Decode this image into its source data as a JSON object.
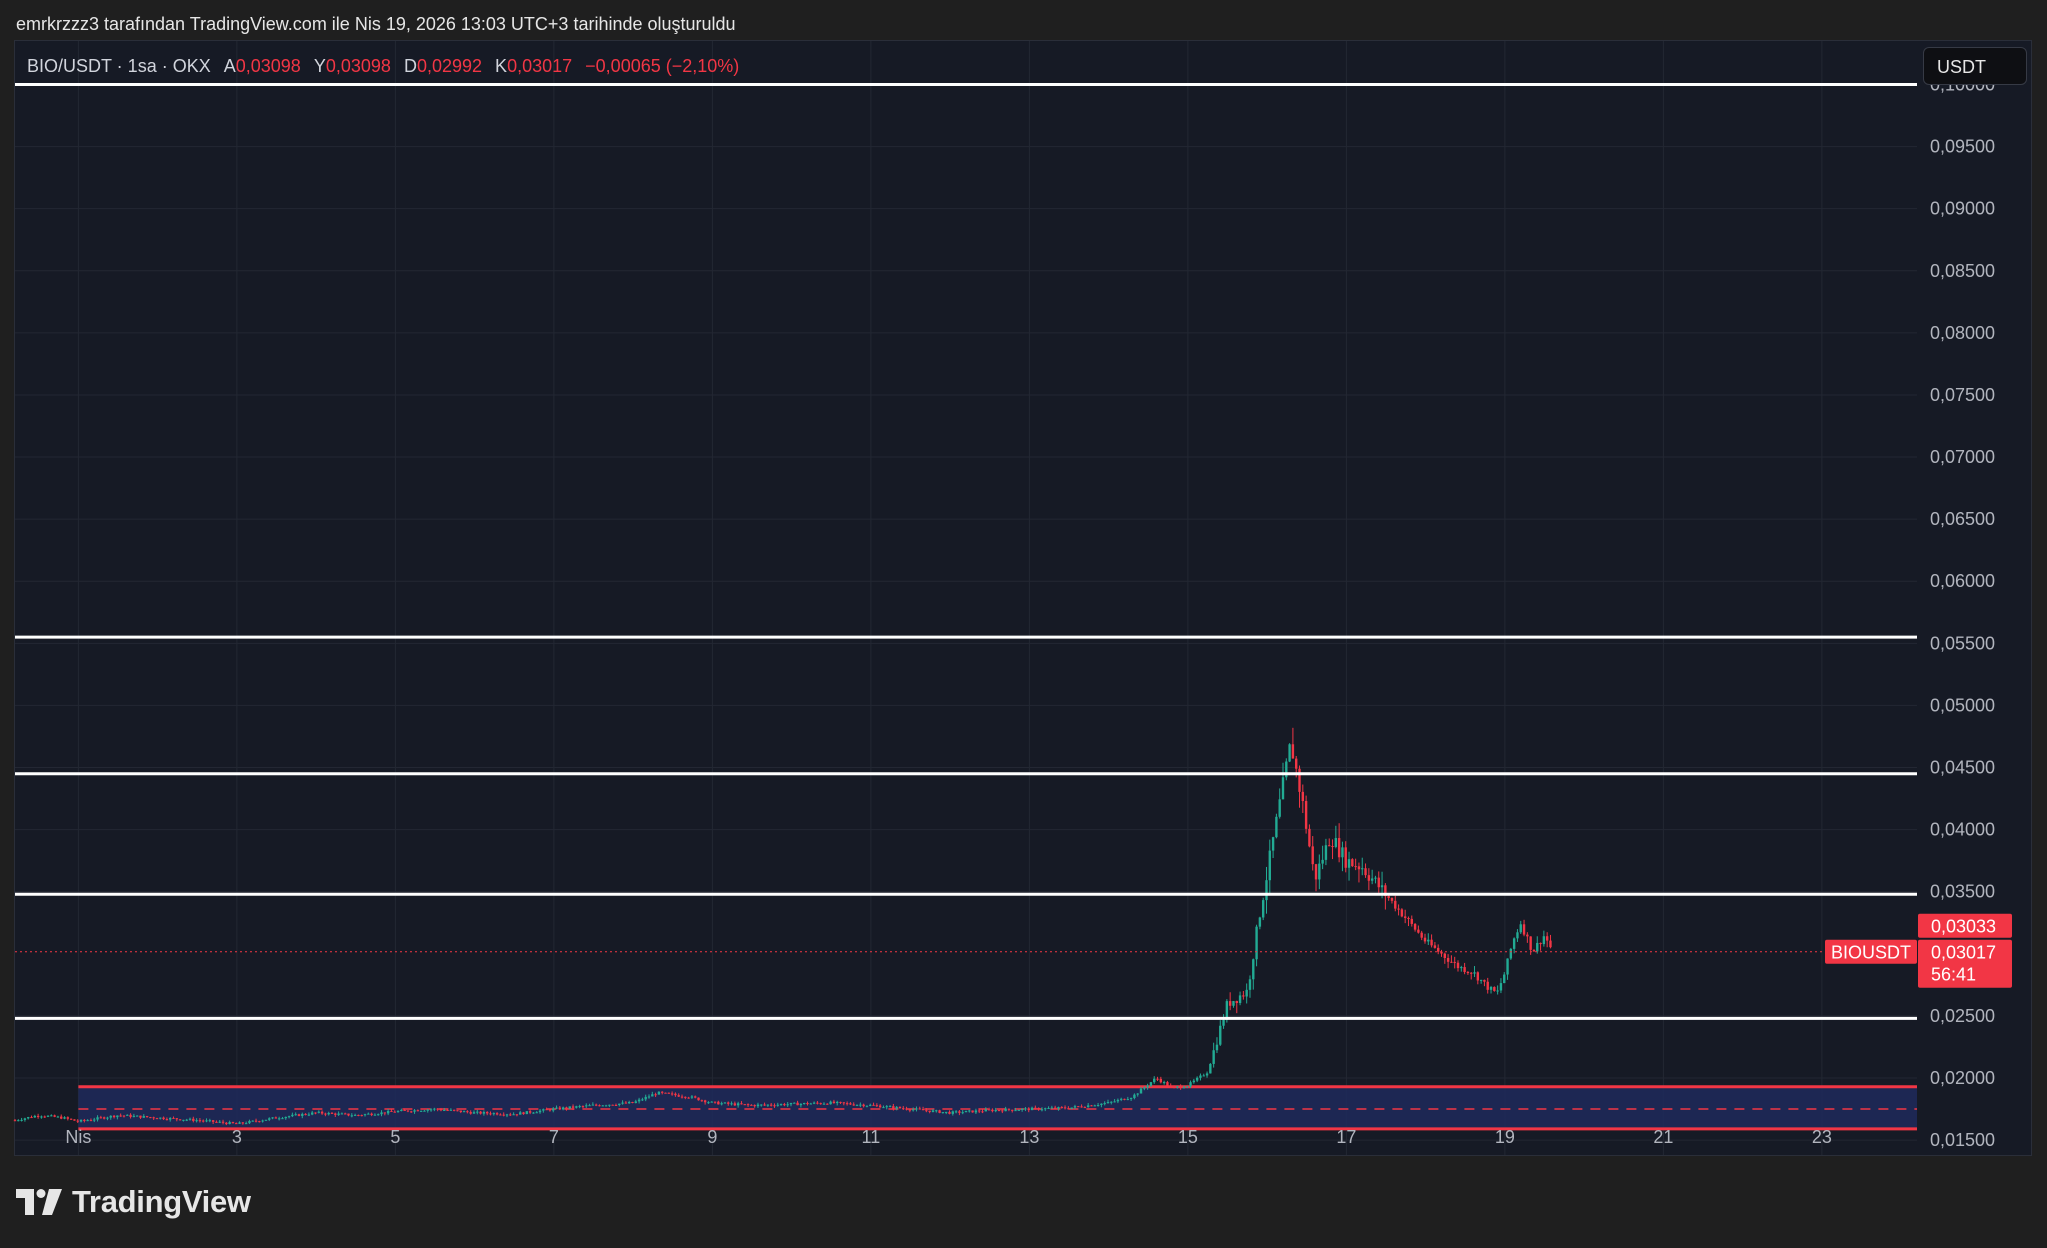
{
  "caption": "emrkrzzz3 tarafından TradingView.com ile Nis 19, 2026 13:03 UTC+3 tarihinde oluşturuldu",
  "legend": {
    "symbol": "BIO/USDT · 1sa · OKX",
    "open_label": "A",
    "open": "0,03098",
    "high_label": "Y",
    "high": "0,03098",
    "low_label": "D",
    "low": "0,02992",
    "close_label": "K",
    "close": "0,03017",
    "change": "−0,00065 (−2,10%)"
  },
  "currency_button": "USDT",
  "brand": "TradingView",
  "price_axis": [
    "0,10000",
    "0,09500",
    "0,09000",
    "0,08500",
    "0,08000",
    "0,07500",
    "0,07000",
    "0,06500",
    "0,06000",
    "0,05500",
    "0,05000",
    "0,04500",
    "0,04000",
    "0,03500",
    "0,02500",
    "0,02000",
    "0,01500"
  ],
  "time_axis": [
    "Nis",
    "3",
    "5",
    "7",
    "9",
    "11",
    "13",
    "15",
    "17",
    "19",
    "21",
    "23"
  ],
  "price_tags": {
    "symbol": "BIOUSDT",
    "high_price": "0,03033",
    "last_price": "0,03017",
    "countdown": "56:41"
  },
  "colors": {
    "up": "#22ab94",
    "down": "#f23645",
    "horizontal_line": "#ffffff",
    "range_fill": "#1f2a5c",
    "range_border": "#f23645",
    "background": "#161a25"
  },
  "chart_data": {
    "type": "candlestick",
    "symbol": "BIO/USDT",
    "interval": "1sa",
    "exchange": "OKX",
    "x_unit": "day of April 2026",
    "xlim": [
      0.2,
      24.2
    ],
    "ylim": [
      0.0138,
      0.1035
    ],
    "horizontal_lines": [
      0.1,
      0.0555,
      0.0445,
      0.0348,
      0.0248
    ],
    "range_box": {
      "x_start": 1.0,
      "x_end": 24.2,
      "top": 0.0193,
      "bottom": 0.0159,
      "mid": 0.0175
    },
    "last_price": 0.03017,
    "path": [
      [
        0.2,
        0.0166
      ],
      [
        0.5,
        0.017
      ],
      [
        0.8,
        0.0168
      ],
      [
        1.0,
        0.0165
      ],
      [
        1.5,
        0.017
      ],
      [
        2.0,
        0.0168
      ],
      [
        2.5,
        0.0166
      ],
      [
        3.0,
        0.0163
      ],
      [
        3.5,
        0.0168
      ],
      [
        4.0,
        0.0172
      ],
      [
        4.5,
        0.017
      ],
      [
        5.0,
        0.0173
      ],
      [
        5.5,
        0.0175
      ],
      [
        6.0,
        0.0172
      ],
      [
        6.5,
        0.0171
      ],
      [
        7.0,
        0.0175
      ],
      [
        7.5,
        0.0178
      ],
      [
        8.0,
        0.018
      ],
      [
        8.3,
        0.0188
      ],
      [
        8.7,
        0.0185
      ],
      [
        9.0,
        0.018
      ],
      [
        9.5,
        0.0178
      ],
      [
        10.0,
        0.0179
      ],
      [
        10.5,
        0.018
      ],
      [
        11.0,
        0.0178
      ],
      [
        11.5,
        0.0175
      ],
      [
        12.0,
        0.0172
      ],
      [
        12.5,
        0.0174
      ],
      [
        13.0,
        0.0175
      ],
      [
        13.5,
        0.0176
      ],
      [
        14.0,
        0.018
      ],
      [
        14.3,
        0.0185
      ],
      [
        14.6,
        0.02
      ],
      [
        14.8,
        0.0192
      ],
      [
        15.0,
        0.0194
      ],
      [
        15.25,
        0.0205
      ],
      [
        15.5,
        0.026
      ],
      [
        15.75,
        0.027
      ],
      [
        15.9,
        0.033
      ],
      [
        16.1,
        0.04
      ],
      [
        16.3,
        0.047
      ],
      [
        16.45,
        0.042
      ],
      [
        16.6,
        0.036
      ],
      [
        16.8,
        0.0395
      ],
      [
        17.0,
        0.0375
      ],
      [
        17.2,
        0.037
      ],
      [
        17.4,
        0.0355
      ],
      [
        17.6,
        0.034
      ],
      [
        17.8,
        0.0325
      ],
      [
        18.0,
        0.031
      ],
      [
        18.2,
        0.03
      ],
      [
        18.4,
        0.029
      ],
      [
        18.6,
        0.0285
      ],
      [
        18.8,
        0.0272
      ],
      [
        18.9,
        0.0268
      ],
      [
        19.0,
        0.0285
      ],
      [
        19.1,
        0.031
      ],
      [
        19.2,
        0.0325
      ],
      [
        19.35,
        0.0302
      ],
      [
        19.5,
        0.0315
      ],
      [
        19.6,
        0.0302
      ]
    ]
  }
}
